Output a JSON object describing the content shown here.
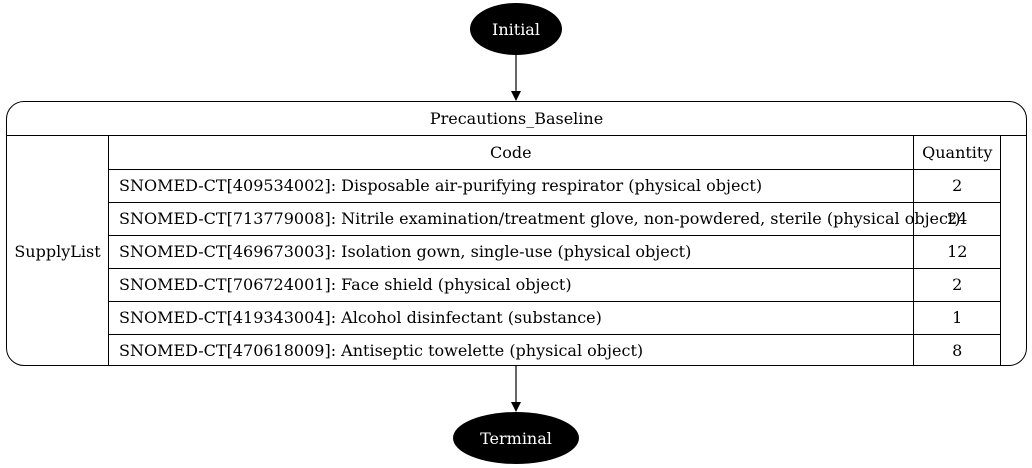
{
  "nodes": {
    "initial": "Initial",
    "terminal": "Terminal"
  },
  "record": {
    "title": "Precautions_Baseline",
    "label": "SupplyList",
    "headers": {
      "code": "Code",
      "quantity": "Quantity"
    },
    "rows": [
      {
        "code": "SNOMED-CT[409534002]: Disposable air-purifying respirator (physical object)",
        "quantity": "2"
      },
      {
        "code": "SNOMED-CT[713779008]: Nitrile examination/treatment glove, non-powdered, sterile (physical object)",
        "quantity": "24"
      },
      {
        "code": "SNOMED-CT[469673003]: Isolation gown, single-use (physical object)",
        "quantity": "12"
      },
      {
        "code": "SNOMED-CT[706724001]: Face shield (physical object)",
        "quantity": "2"
      },
      {
        "code": "SNOMED-CT[419343004]: Alcohol disinfectant (substance)",
        "quantity": "1"
      },
      {
        "code": "SNOMED-CT[470618009]: Antiseptic towelette (physical object)",
        "quantity": "8"
      }
    ]
  }
}
